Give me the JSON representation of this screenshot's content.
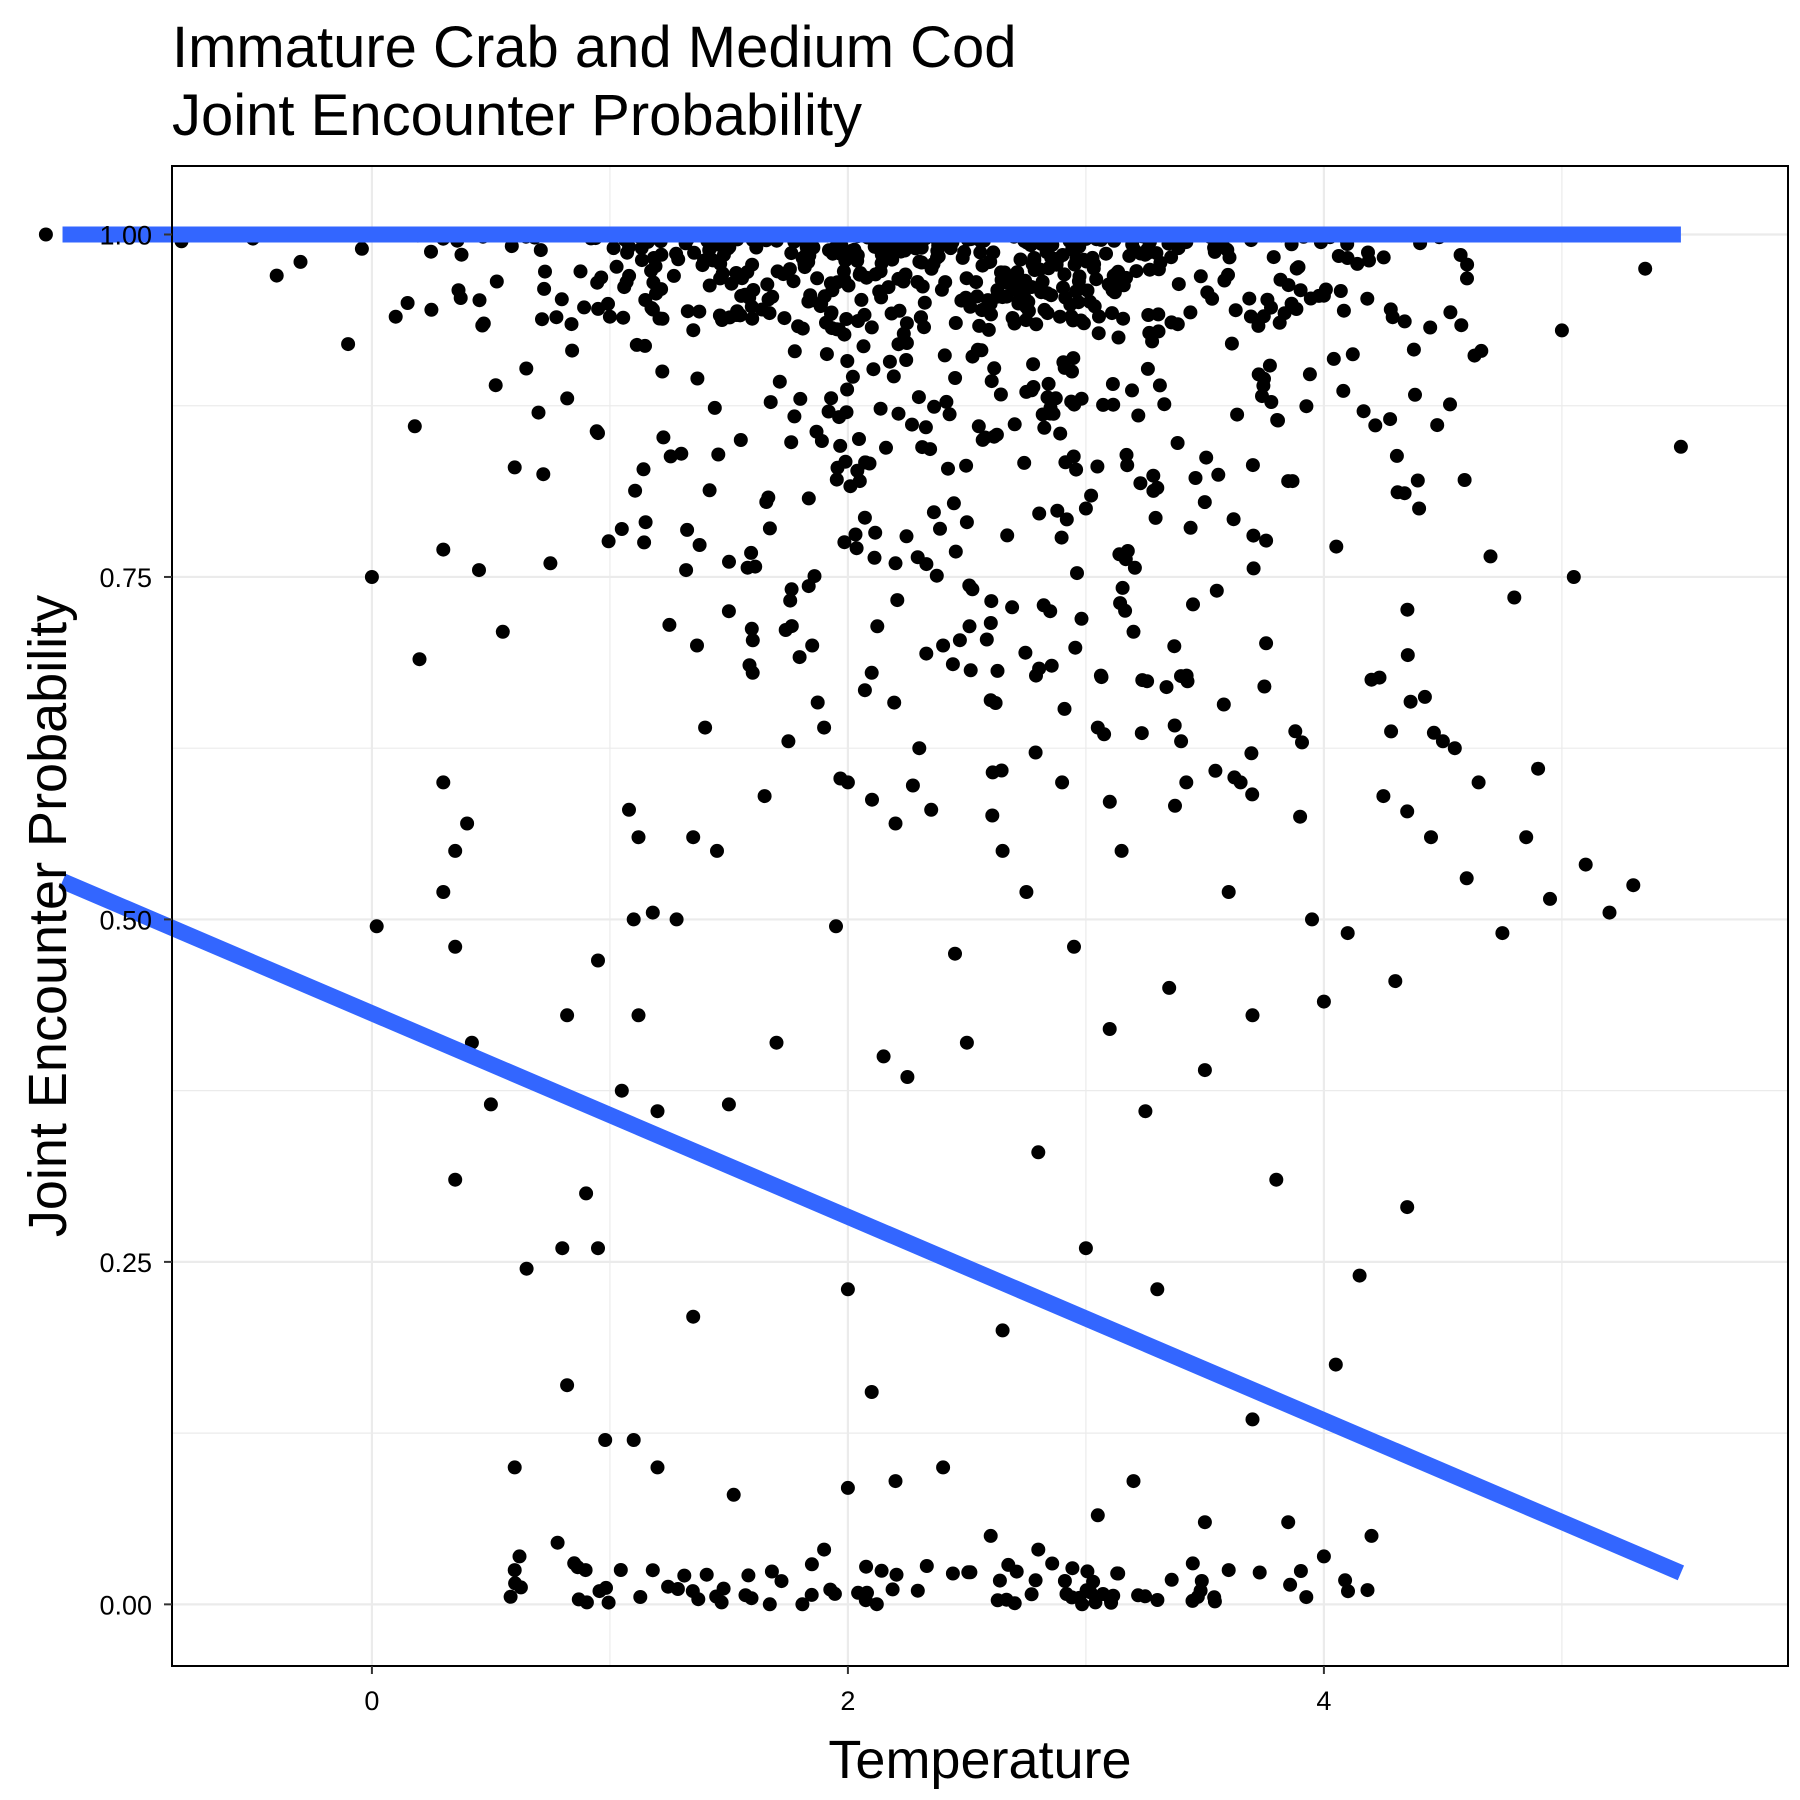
{
  "chart_data": {
    "type": "scatter",
    "title": "Immature Crab and Medium Cod",
    "subtitle": "Joint Encounter Probability",
    "xlabel": "Temperature",
    "ylabel": "Joint Encounter Probability",
    "xlim": [
      -0.84,
      5.95
    ],
    "ylim": [
      -0.045,
      1.05
    ],
    "xticks": [
      0,
      2,
      4
    ],
    "xtick_labels": [
      "0",
      "2",
      "4"
    ],
    "yticks": [
      0,
      0.25,
      0.5,
      0.75,
      1.0
    ],
    "ytick_labels": [
      "0.00",
      "0.25",
      "0.50",
      "0.75",
      "1.00"
    ],
    "grid": true,
    "colors": {
      "points": "#000000",
      "fit_line": "#3366ff",
      "grid": "#ebebeb"
    },
    "fit_lines": [
      {
        "x": [
          -1.3,
          5.5
        ],
        "y": [
          0.528,
          0.023
        ]
      },
      {
        "x": [
          -1.3,
          5.5
        ],
        "y": [
          1.0,
          1.0
        ]
      }
    ],
    "points": [
      [
        -1.37,
        1.0
      ],
      [
        -0.8,
        0.995
      ],
      [
        -0.5,
        0.997
      ],
      [
        -0.4,
        0.97
      ],
      [
        -0.3,
        0.98
      ],
      [
        -0.1,
        0.92
      ],
      [
        0.0,
        0.75
      ],
      [
        0.02,
        0.495
      ],
      [
        0.1,
        0.94
      ],
      [
        0.15,
        0.95
      ],
      [
        0.18,
        0.86
      ],
      [
        0.2,
        0.69
      ],
      [
        0.25,
        0.945
      ],
      [
        0.3,
        0.77
      ],
      [
        0.3,
        0.6
      ],
      [
        0.3,
        0.52
      ],
      [
        0.35,
        0.55
      ],
      [
        0.35,
        0.48
      ],
      [
        0.35,
        0.31
      ],
      [
        0.4,
        0.57
      ],
      [
        0.42,
        0.41
      ],
      [
        0.45,
        0.755
      ],
      [
        0.47,
        0.935
      ],
      [
        0.5,
        0.365
      ],
      [
        0.52,
        0.89
      ],
      [
        0.55,
        0.71
      ],
      [
        0.6,
        0.83
      ],
      [
        0.6,
        0.1
      ],
      [
        0.62,
        0.035
      ],
      [
        0.65,
        0.245
      ],
      [
        0.7,
        0.87
      ],
      [
        0.72,
        0.825
      ],
      [
        0.75,
        0.76
      ],
      [
        0.78,
        0.045
      ],
      [
        0.8,
        0.26
      ],
      [
        0.82,
        0.43
      ],
      [
        0.82,
        0.16
      ],
      [
        0.85,
        0.03
      ],
      [
        0.9,
        0.3
      ],
      [
        0.95,
        0.855
      ],
      [
        0.95,
        0.47
      ],
      [
        0.95,
        0.26
      ],
      [
        0.98,
        0.12
      ],
      [
        1.0,
        0.94
      ],
      [
        1.05,
        0.785
      ],
      [
        1.05,
        0.375
      ],
      [
        1.08,
        0.58
      ],
      [
        1.1,
        0.5
      ],
      [
        1.12,
        0.56
      ],
      [
        1.12,
        0.43
      ],
      [
        1.15,
        0.79
      ],
      [
        1.18,
        0.505
      ],
      [
        1.2,
        0.36
      ],
      [
        1.2,
        0.1
      ],
      [
        1.22,
        0.9
      ],
      [
        1.25,
        0.715
      ],
      [
        1.28,
        0.5
      ],
      [
        1.3,
        0.84
      ],
      [
        1.32,
        0.755
      ],
      [
        1.35,
        0.56
      ],
      [
        1.35,
        0.21
      ],
      [
        1.4,
        0.64
      ],
      [
        1.45,
        0.55
      ],
      [
        1.5,
        0.725
      ],
      [
        1.5,
        0.365
      ],
      [
        1.52,
        0.08
      ],
      [
        1.55,
        0.85
      ],
      [
        1.6,
        0.68
      ],
      [
        1.65,
        0.59
      ],
      [
        1.7,
        0.41
      ],
      [
        1.75,
        0.63
      ],
      [
        1.8,
        0.88
      ],
      [
        1.85,
        0.7
      ],
      [
        1.9,
        0.64
      ],
      [
        1.95,
        0.495
      ],
      [
        2.0,
        0.6
      ],
      [
        2.0,
        0.23
      ],
      [
        2.05,
        0.82
      ],
      [
        2.1,
        0.68
      ],
      [
        2.1,
        0.155
      ],
      [
        2.15,
        0.4
      ],
      [
        2.2,
        0.76
      ],
      [
        2.2,
        0.57
      ],
      [
        2.25,
        0.385
      ],
      [
        2.3,
        0.625
      ],
      [
        2.35,
        0.58
      ],
      [
        2.4,
        0.7
      ],
      [
        2.45,
        0.475
      ],
      [
        2.5,
        0.79
      ],
      [
        2.5,
        0.41
      ],
      [
        2.55,
        0.86
      ],
      [
        2.6,
        0.66
      ],
      [
        2.65,
        0.55
      ],
      [
        2.65,
        0.2
      ],
      [
        2.7,
        0.935
      ],
      [
        2.75,
        0.52
      ],
      [
        2.8,
        0.33
      ],
      [
        2.85,
        0.725
      ],
      [
        2.9,
        0.6
      ],
      [
        2.95,
        0.48
      ],
      [
        3.0,
        0.8
      ],
      [
        3.0,
        0.26
      ],
      [
        3.05,
        0.64
      ],
      [
        3.1,
        0.42
      ],
      [
        3.15,
        0.55
      ],
      [
        3.2,
        0.71
      ],
      [
        3.25,
        0.36
      ],
      [
        3.3,
        0.815
      ],
      [
        3.3,
        0.23
      ],
      [
        3.35,
        0.45
      ],
      [
        3.4,
        0.63
      ],
      [
        3.45,
        0.73
      ],
      [
        3.5,
        0.39
      ],
      [
        3.5,
        0.06
      ],
      [
        3.55,
        0.74
      ],
      [
        3.6,
        0.52
      ],
      [
        3.65,
        0.6
      ],
      [
        3.7,
        0.43
      ],
      [
        3.75,
        0.67
      ],
      [
        3.8,
        0.31
      ],
      [
        3.85,
        0.82
      ],
      [
        3.9,
        0.575
      ],
      [
        3.95,
        0.5
      ],
      [
        4.0,
        0.44
      ],
      [
        4.05,
        0.175
      ],
      [
        4.1,
        0.49
      ],
      [
        4.15,
        0.24
      ],
      [
        4.2,
        0.675
      ],
      [
        4.25,
        0.59
      ],
      [
        4.3,
        0.455
      ],
      [
        4.35,
        0.29
      ],
      [
        4.4,
        0.8
      ],
      [
        4.45,
        0.56
      ],
      [
        4.5,
        0.63
      ],
      [
        4.55,
        0.625
      ],
      [
        4.6,
        0.53
      ],
      [
        4.65,
        0.6
      ],
      [
        4.7,
        0.765
      ],
      [
        4.75,
        0.49
      ],
      [
        4.8,
        0.735
      ],
      [
        4.85,
        0.56
      ],
      [
        4.9,
        0.61
      ],
      [
        4.95,
        0.515
      ],
      [
        5.0,
        0.93
      ],
      [
        5.05,
        0.75
      ],
      [
        5.1,
        0.54
      ],
      [
        5.2,
        0.505
      ],
      [
        5.3,
        0.525
      ],
      [
        5.35,
        0.975
      ],
      [
        5.5,
        0.845
      ],
      [
        3.2,
        0.09
      ],
      [
        3.05,
        0.065
      ],
      [
        2.6,
        0.05
      ],
      [
        2.8,
        0.04
      ],
      [
        2.0,
        0.085
      ],
      [
        2.2,
        0.09
      ],
      [
        1.9,
        0.04
      ],
      [
        3.6,
        0.025
      ],
      [
        3.85,
        0.06
      ],
      [
        4.0,
        0.035
      ],
      [
        4.2,
        0.05
      ],
      [
        1.1,
        0.12
      ],
      [
        0.6,
        0.025
      ],
      [
        2.4,
        0.1
      ],
      [
        3.7,
        0.135
      ]
    ],
    "bottom_cluster": {
      "x_range": [
        0.55,
        4.2
      ],
      "y_range": [
        0.0,
        0.03
      ]
    },
    "top_cluster": {
      "x_range": [
        -0.8,
        4.9
      ],
      "y_range": [
        0.93,
        1.0
      ]
    },
    "mid_cloud": {
      "x_range": [
        0.55,
        4.9
      ],
      "y_range": [
        0.55,
        1.0
      ]
    }
  }
}
